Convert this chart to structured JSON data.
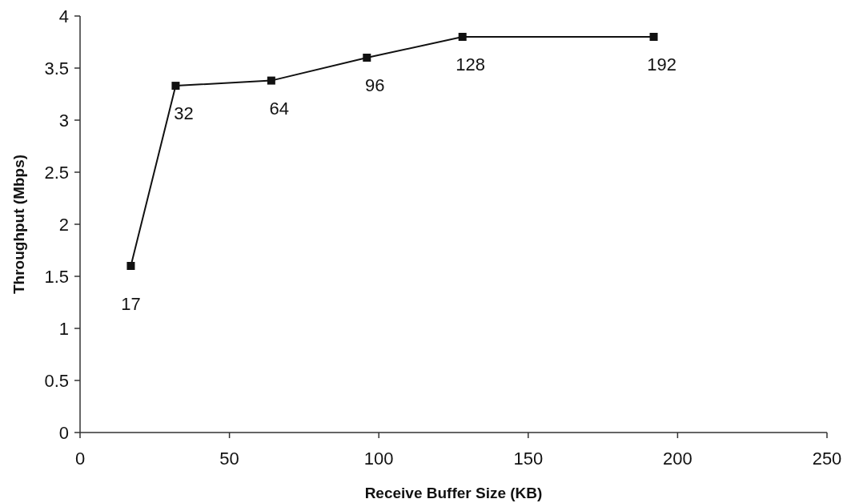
{
  "chart_data": {
    "type": "line",
    "xlabel": "Receive Buffer Size (KB)",
    "ylabel": "Throughput (Mbps)",
    "x": [
      17,
      32,
      64,
      96,
      128,
      192
    ],
    "series": [
      {
        "color": "#111111",
        "values": [
          1.6,
          3.33,
          3.38,
          3.6,
          3.8,
          3.8
        ]
      }
    ],
    "annotations": [
      {
        "text": "17",
        "x": 17,
        "y": 1.6
      },
      {
        "text": "32",
        "x": 32,
        "y": 3.33
      },
      {
        "text": "64",
        "x": 64,
        "y": 3.38
      },
      {
        "text": "96",
        "x": 96,
        "y": 3.6
      },
      {
        "text": "128",
        "x": 128,
        "y": 3.8
      },
      {
        "text": "192",
        "x": 192,
        "y": 3.8
      }
    ],
    "xlim": [
      0,
      250
    ],
    "xticks": [
      0,
      50,
      100,
      150,
      200,
      250
    ],
    "ylim": [
      0,
      4
    ],
    "yticks": [
      0,
      0.5,
      1,
      1.5,
      2,
      2.5,
      3,
      3.5,
      4
    ],
    "marker": "square",
    "line_style": "solid"
  }
}
